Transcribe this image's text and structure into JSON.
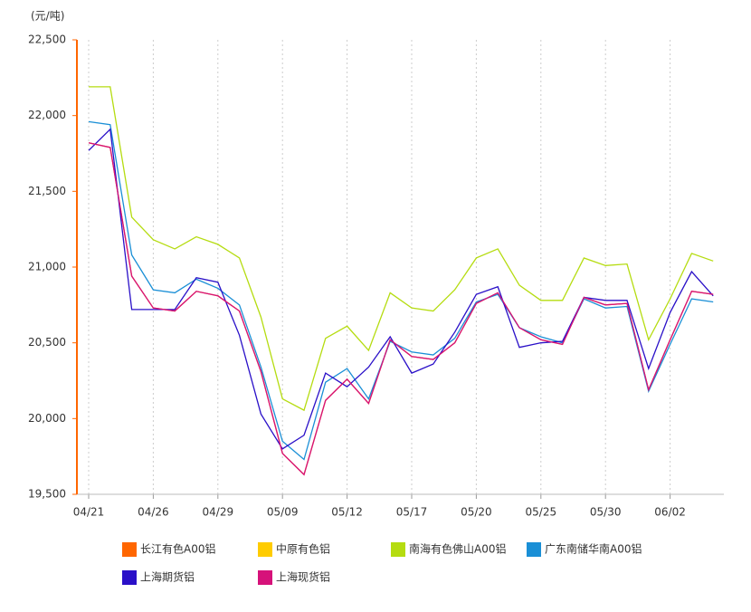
{
  "chart_data": {
    "type": "line",
    "unit_label": "(元/吨)",
    "categories": [
      "04/21",
      null,
      null,
      "04/26",
      null,
      null,
      "04/29",
      null,
      null,
      "05/09",
      null,
      null,
      "05/12",
      null,
      null,
      "05/17",
      null,
      null,
      "05/20",
      null,
      null,
      "05/25",
      null,
      null,
      "05/30",
      null,
      null,
      "06/02",
      null,
      null
    ],
    "ylim": [
      19500,
      22500
    ],
    "yticks": [
      {
        "value": 19500,
        "label": "19,500"
      },
      {
        "value": 20000,
        "label": "20,000"
      },
      {
        "value": 20500,
        "label": "20,500"
      },
      {
        "value": 21000,
        "label": "21,000"
      },
      {
        "value": 21500,
        "label": "21,500"
      },
      {
        "value": 22000,
        "label": "22,000"
      },
      {
        "value": 22500,
        "label": "22,500"
      }
    ],
    "x_grid": true,
    "series": [
      {
        "name": "长江有色A00铝",
        "color": "#ff6600",
        "values": [
          21820,
          21790,
          20940,
          20730,
          20710,
          20840,
          20810,
          20710,
          20310,
          19770,
          19630,
          20120,
          20260,
          20100,
          20520,
          20410,
          20390,
          20500,
          20760,
          20830,
          20600,
          20520,
          20490,
          20800,
          20750,
          20760,
          20190,
          20520,
          20840,
          20820
        ]
      },
      {
        "name": "中原有色铝",
        "color": "#ffcc00",
        "values": [
          null,
          null,
          null,
          null,
          null,
          null,
          null,
          null,
          null,
          null,
          null,
          null,
          null,
          null,
          null,
          null,
          null,
          null,
          null,
          null,
          null,
          null,
          null,
          null,
          null,
          null,
          null,
          null,
          null,
          null
        ]
      },
      {
        "name": "南海有色佛山A00铝",
        "color": "#b5dc10",
        "values": [
          22190,
          22190,
          21330,
          21180,
          21120,
          21200,
          21150,
          21060,
          20670,
          20130,
          20055,
          20530,
          20610,
          20450,
          20830,
          20730,
          20710,
          20850,
          21060,
          21120,
          20880,
          20780,
          20780,
          21060,
          21010,
          21020,
          20520,
          20790,
          21090,
          21040
        ]
      },
      {
        "name": "广东南储华南A00铝",
        "color": "#1a8fd6",
        "values": [
          21960,
          21940,
          21080,
          20850,
          20830,
          20920,
          20860,
          20750,
          20340,
          19850,
          19730,
          20240,
          20330,
          20130,
          20510,
          20440,
          20420,
          20530,
          20770,
          20820,
          20600,
          20540,
          20500,
          20790,
          20730,
          20740,
          20180,
          20490,
          20790,
          20770
        ]
      },
      {
        "name": "上海期货铝",
        "color": "#2a10c8",
        "values": [
          21770,
          21910,
          20720,
          20720,
          20720,
          20930,
          20900,
          20550,
          20030,
          19800,
          19890,
          20300,
          20210,
          20340,
          20540,
          20300,
          20360,
          20570,
          20820,
          20870,
          20470,
          20500,
          20510,
          20800,
          20780,
          20780,
          20330,
          20700,
          20970,
          20810
        ]
      },
      {
        "name": "上海现货铝",
        "color": "#d6127a",
        "values": [
          21820,
          21790,
          20940,
          20730,
          20710,
          20840,
          20810,
          20710,
          20310,
          19770,
          19630,
          20120,
          20260,
          20100,
          20520,
          20410,
          20390,
          20500,
          20760,
          20830,
          20600,
          20520,
          20490,
          20800,
          20750,
          20760,
          20190,
          20520,
          20840,
          20820
        ]
      }
    ]
  }
}
